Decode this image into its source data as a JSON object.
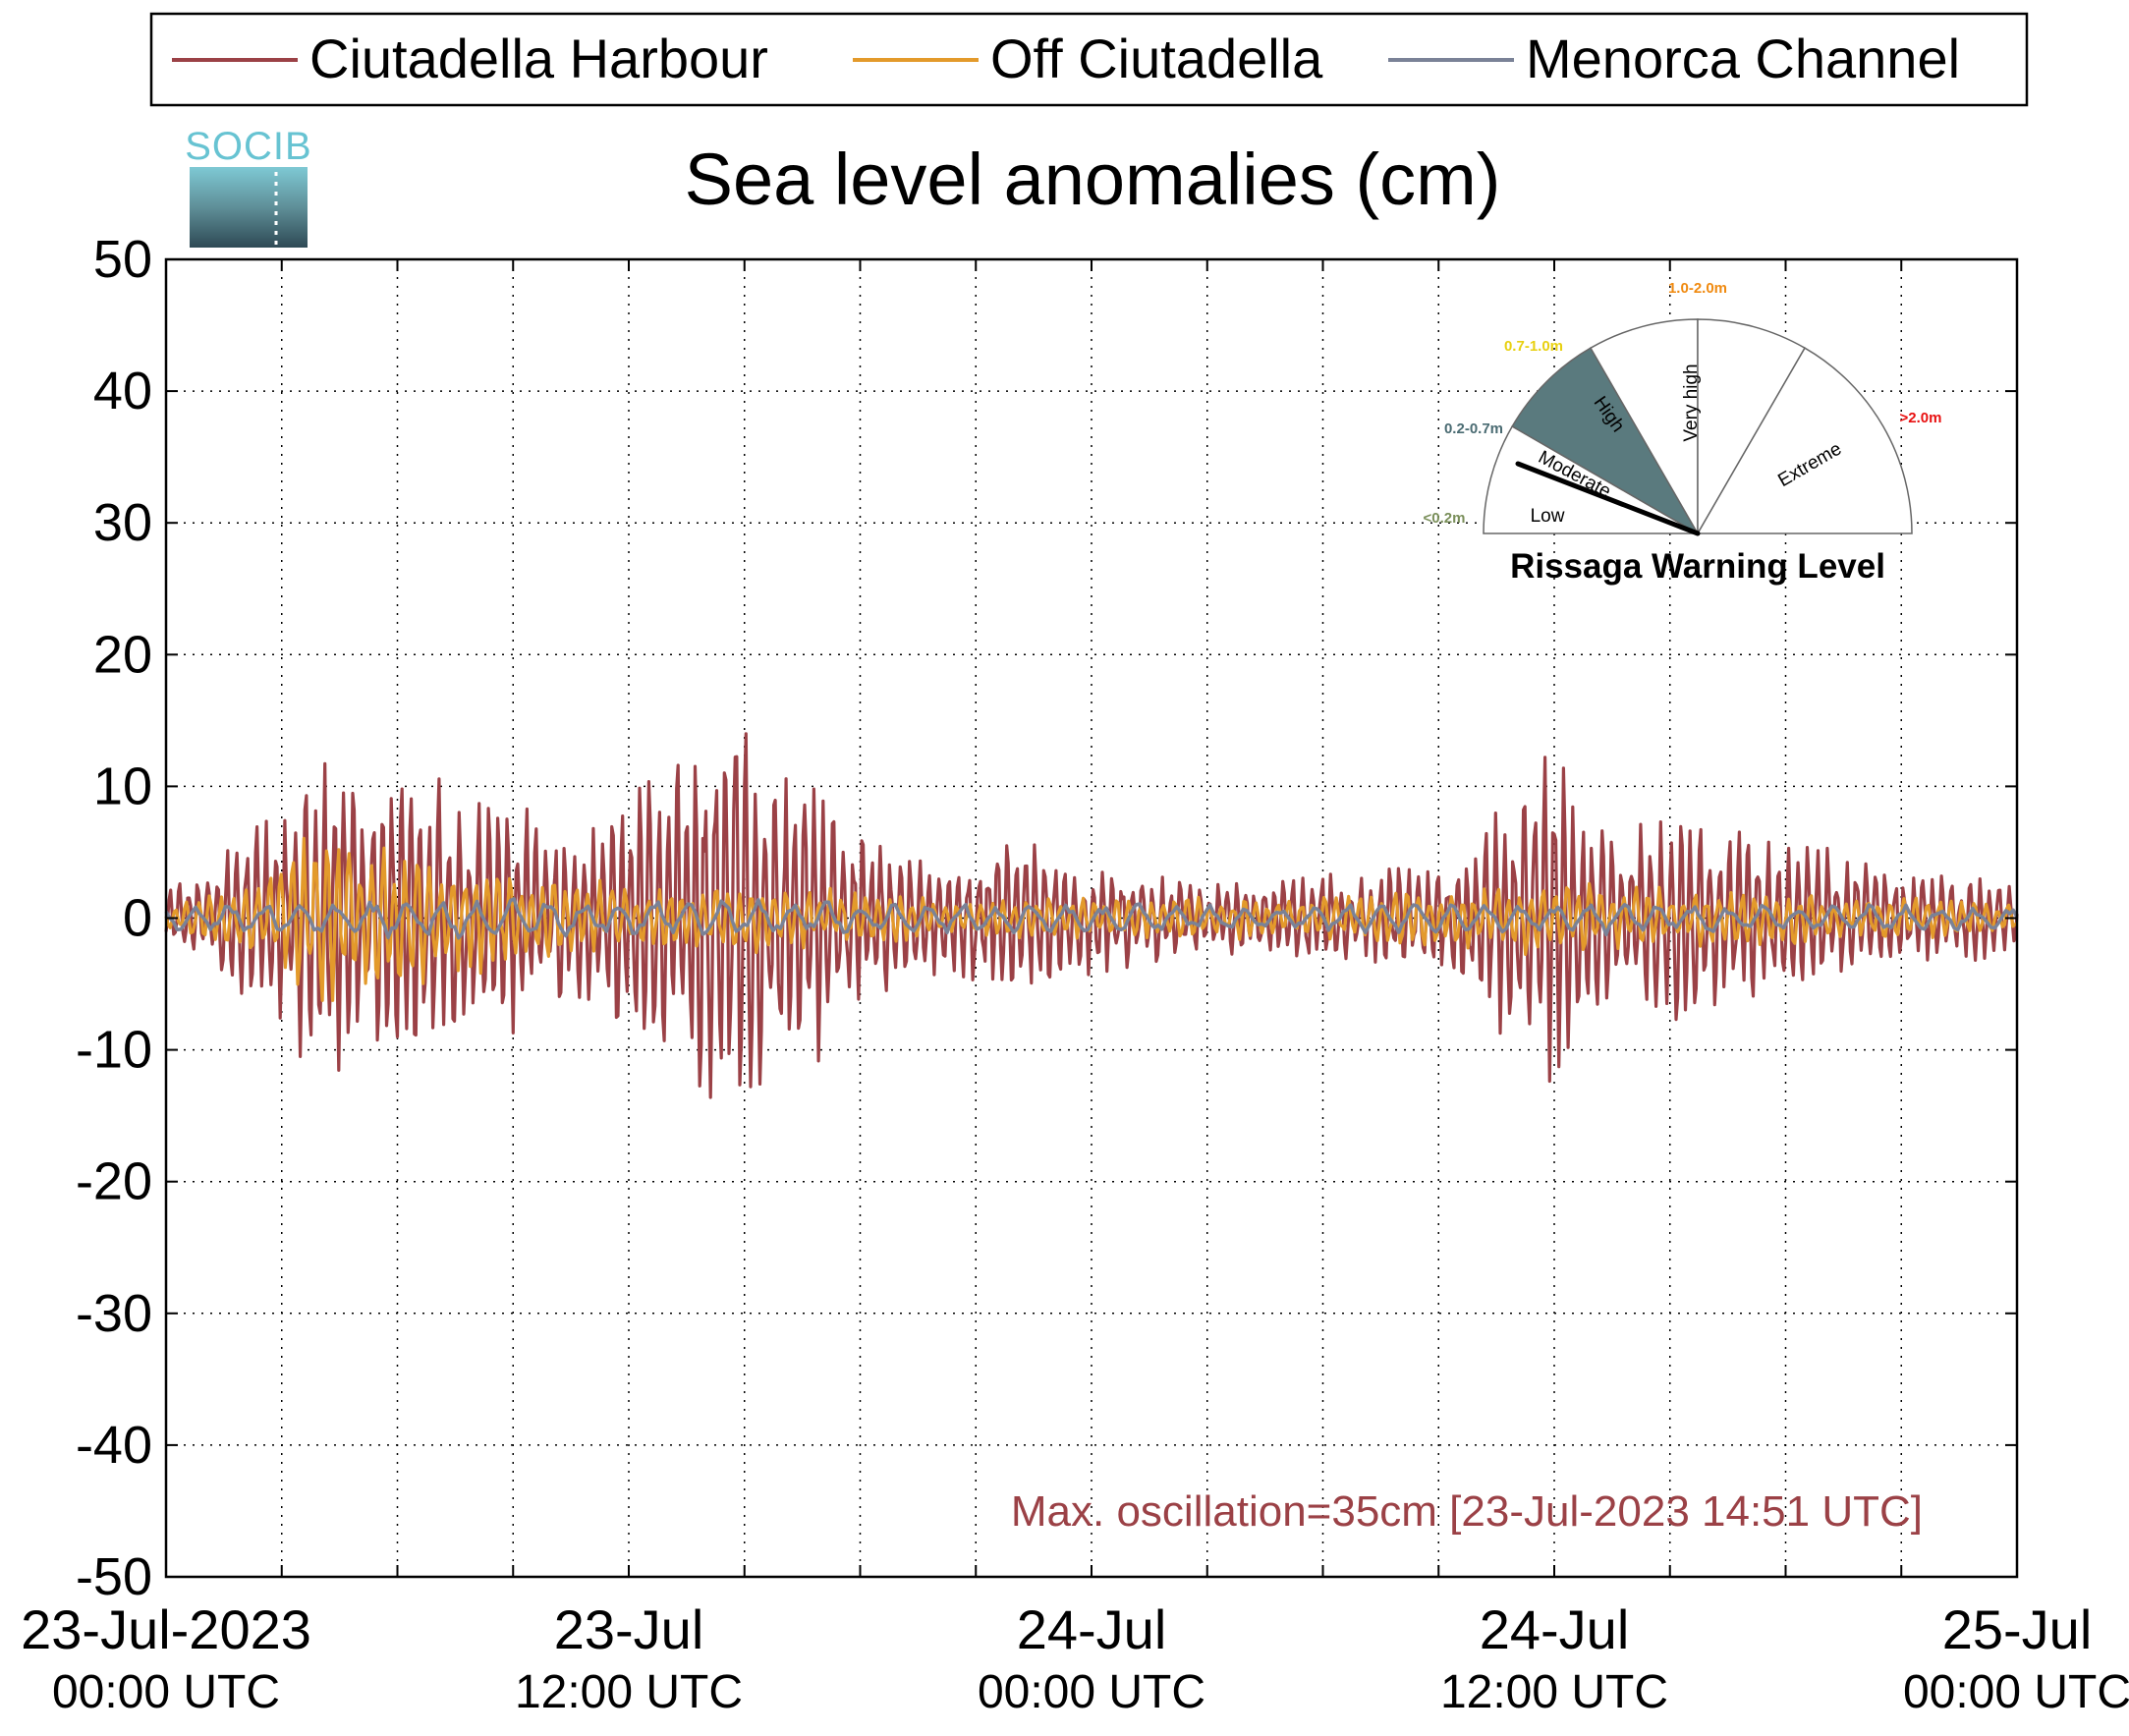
{
  "logo": {
    "text": "SOCIB"
  },
  "legend": {
    "placement": "top",
    "items": [
      {
        "label": "Ciutadella Harbour",
        "color": "#9b4146"
      },
      {
        "label": "Off Ciutadella",
        "color": "#e39a2b"
      },
      {
        "label": "Menorca Channel",
        "color": "#7a8297"
      }
    ]
  },
  "gauge": {
    "title": "Rissaga Warning Level",
    "sectors": [
      {
        "label": "Low",
        "range": "<0.2m",
        "range_color": "#7a8f5a"
      },
      {
        "label": "Moderate",
        "range": "0.2-0.7m",
        "range_color": "#4a6b72"
      },
      {
        "label": "High",
        "range": "0.7-1.0m",
        "range_color": "#e8d010"
      },
      {
        "label": "Very high",
        "range": "1.0-2.0m",
        "range_color": "#f08a10"
      },
      {
        "label": "Extreme",
        "range": ">2.0m",
        "range_color": "#e81010"
      }
    ],
    "active_level": "Moderate",
    "active_color": "#5a7a7e"
  },
  "annotation": {
    "text": "Max. oscillation=35cm [23-Jul-2023 14:51 UTC]",
    "color": "#9b4146"
  },
  "chart_data": {
    "type": "line",
    "title": "Sea level anomalies (cm)",
    "xlabel": "",
    "ylabel": "",
    "ylim": [
      -50,
      50
    ],
    "yticks": [
      50,
      40,
      30,
      20,
      10,
      0,
      -10,
      -20,
      -30,
      -40,
      -50
    ],
    "xlim": [
      "2023-07-23 00:00",
      "2023-07-25 00:00"
    ],
    "xticks": [
      {
        "date": "23-Jul-2023",
        "time": "00:00 UTC"
      },
      {
        "date": "23-Jul",
        "time": "12:00 UTC"
      },
      {
        "date": "24-Jul",
        "time": "00:00 UTC"
      },
      {
        "date": "24-Jul",
        "time": "12:00 UTC"
      },
      {
        "date": "25-Jul",
        "time": "00:00 UTC"
      }
    ],
    "grid": true,
    "series": [
      {
        "name": "Ciutadella Harbour",
        "color": "#9b4146",
        "envelope_hour": [
          0,
          1,
          2,
          3,
          4,
          5,
          6,
          7,
          8,
          9,
          10,
          11,
          12,
          13,
          14,
          15,
          16,
          17,
          18,
          19,
          20,
          21,
          22,
          23,
          24,
          25,
          26,
          27,
          28,
          29,
          30,
          31,
          32,
          33,
          34,
          35,
          36,
          37,
          38,
          39,
          40,
          41,
          42,
          43,
          44,
          45,
          46,
          47,
          48
        ],
        "envelope_cm": [
          2,
          4,
          6,
          8,
          12,
          9,
          12,
          11,
          8,
          9,
          7,
          6,
          9,
          12,
          15,
          17,
          12,
          10,
          7,
          5,
          4,
          5,
          7,
          5,
          4,
          4,
          3,
          3,
          3,
          3,
          4,
          3,
          4,
          4,
          6,
          10,
          12,
          7,
          6,
          8,
          9,
          6,
          5,
          5,
          4,
          4,
          3,
          3,
          2
        ],
        "max": 18.5,
        "min": -17
      },
      {
        "name": "Off Ciutadella",
        "color": "#e39a2b",
        "envelope_hour": [
          0,
          2,
          4,
          6,
          8,
          10,
          12,
          14,
          16,
          18,
          20,
          22,
          24,
          26,
          28,
          30,
          32,
          34,
          36,
          38,
          40,
          42,
          44,
          46,
          48
        ],
        "envelope_cm": [
          1,
          2,
          7,
          5,
          4,
          3,
          2.5,
          2.5,
          2.5,
          2,
          1.5,
          1.5,
          1.5,
          1.5,
          1.5,
          1.5,
          2,
          2.5,
          3,
          2.5,
          2,
          2,
          1.5,
          1.5,
          1
        ],
        "max": 7.5,
        "min": -7.5
      },
      {
        "name": "Menorca Channel",
        "color": "#7a8297",
        "envelope_hour": [
          0,
          6,
          12,
          18,
          24,
          30,
          36,
          42,
          48
        ],
        "envelope_cm": [
          1,
          1.5,
          1.5,
          1.2,
          1,
          1,
          1.2,
          1,
          0.8
        ],
        "max": 2.5,
        "min": -3
      }
    ]
  }
}
